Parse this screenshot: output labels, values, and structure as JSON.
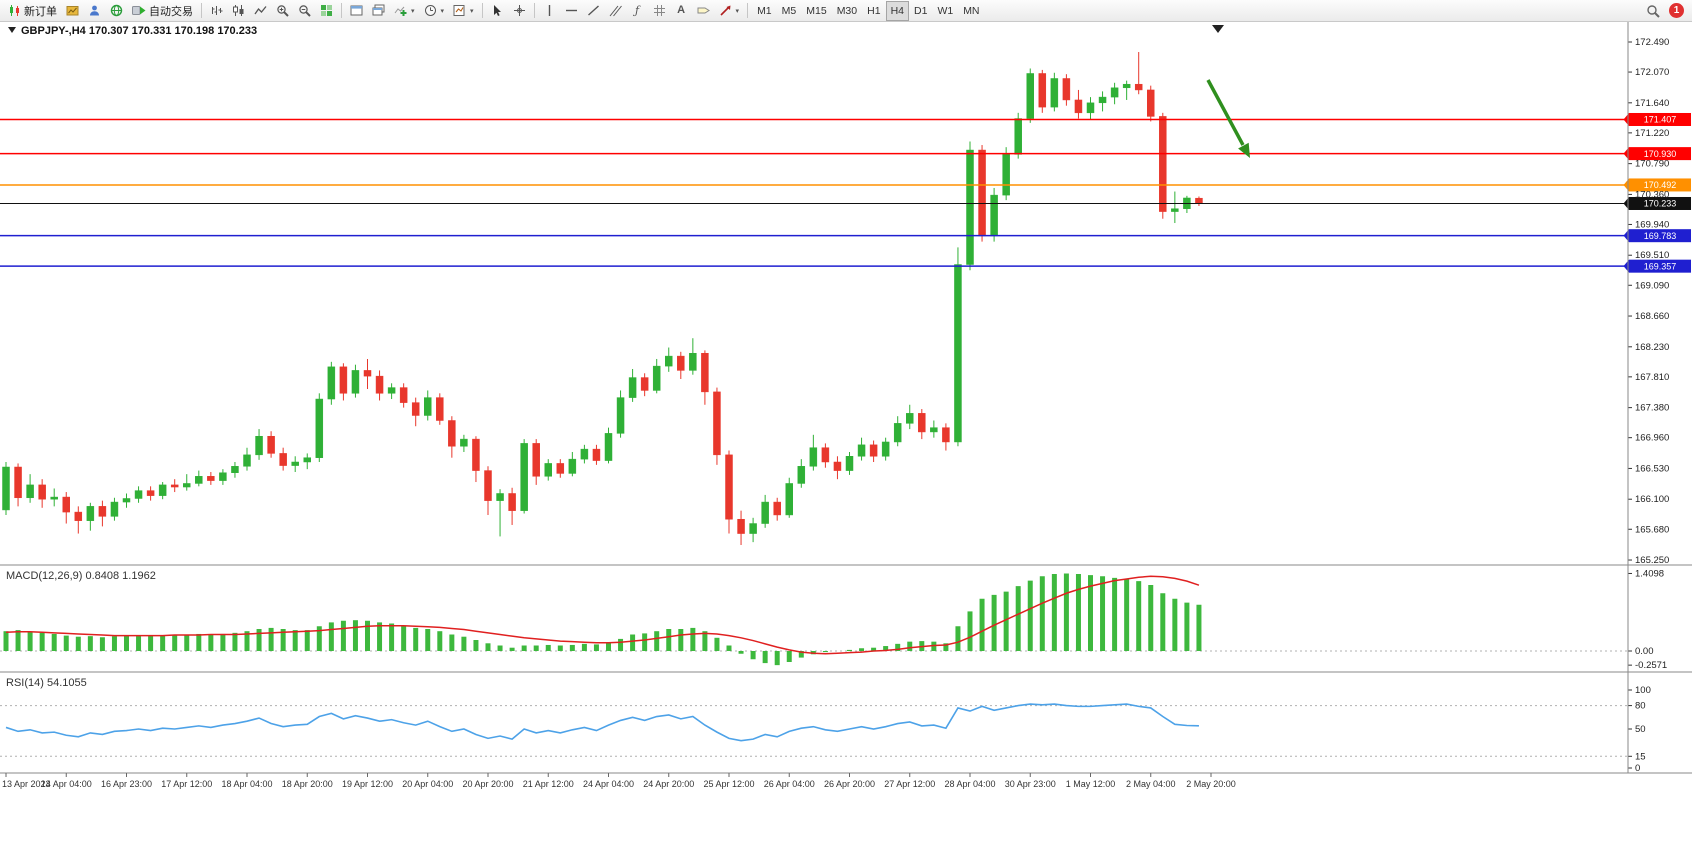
{
  "toolbar": {
    "new_order": "新订单",
    "autotrading": "自动交易",
    "timeframes": [
      "M1",
      "M5",
      "M15",
      "M30",
      "H1",
      "H4",
      "D1",
      "W1",
      "MN"
    ],
    "active_timeframe": "H4",
    "notification_count": "1"
  },
  "icons": {
    "new-order": "mini-candlesticks",
    "new-chart": "gold-chart",
    "profiles": "blue-person",
    "market-watch": "green-globe",
    "auto-trading": "green-play",
    "chart-bars": "ohlc-bars",
    "chart-candles": "candlesticks",
    "chart-line": "zigzag-line",
    "zoom-in": "magnifier-plus",
    "zoom-out": "magnifier-minus",
    "tile-windows": "green-grid",
    "new-window": "window",
    "cascade-windows": "stacked-windows",
    "indicators": "green-plus-chart",
    "periods": "clock",
    "templates": "chart-arrow",
    "cursor": "pointer-arrow",
    "crosshair": "cross",
    "vertical-line": "|",
    "horizontal-line": "—",
    "trendline": "/",
    "channel": "parallel-lines",
    "fibonacci": "ƒ",
    "grid": "#",
    "text": "A",
    "label": "tag",
    "arrows": "arrow-ne",
    "search": "magnifier",
    "notification": "red-badge"
  },
  "chart": {
    "symbol": "GBPJPY-",
    "timeframe": "H4",
    "open": "170.307",
    "high": "170.331",
    "low": "170.198",
    "close": "170.233"
  },
  "chart_data": {
    "type": "candlestick",
    "symbol": "GBPJPY-",
    "timeframe": "H4",
    "ylim": [
      165.25,
      172.49
    ],
    "grid": false,
    "price_axis": [
      "172.490",
      "172.070",
      "171.640",
      "171.220",
      "170.790",
      "170.360",
      "169.940",
      "169.510",
      "169.090",
      "168.660",
      "168.230",
      "167.810",
      "167.380",
      "166.960",
      "166.530",
      "166.100",
      "165.680",
      "165.250"
    ],
    "dates": [
      "13 Apr 2023",
      "14 Apr 04:00",
      "16 Apr 23:00",
      "17 Apr 12:00",
      "18 Apr 04:00",
      "18 Apr 20:00",
      "19 Apr 12:00",
      "20 Apr 04:00",
      "20 Apr 20:00",
      "21 Apr 12:00",
      "24 Apr 04:00",
      "24 Apr 20:00",
      "25 Apr 12:00",
      "26 Apr 04:00",
      "26 Apr 20:00",
      "27 Apr 12:00",
      "28 Apr 04:00",
      "30 Apr 23:00",
      "1 May 12:00",
      "2 May 04:00",
      "2 May 20:00"
    ],
    "colors": {
      "bull": "#2fb036",
      "bear": "#e8372c",
      "macd_hist": "#3db83d",
      "macd_signal": "#e02020",
      "rsi": "#4da2e8",
      "hline_red": "#ff0000",
      "hline_orange": "#ff9000",
      "hline_blue": "#1f1fd0",
      "current_price": "#111111",
      "arrow": "#2f8f1e"
    },
    "hlines": [
      {
        "value": 171.407,
        "label": "171.407",
        "color": "#ff0000"
      },
      {
        "value": 170.93,
        "label": "170.930",
        "color": "#ff0000"
      },
      {
        "value": 170.492,
        "label": "170.492",
        "color": "#ff9000"
      },
      {
        "value": 169.783,
        "label": "169.783",
        "color": "#1f1fd0"
      },
      {
        "value": 169.357,
        "label": "169.357",
        "color": "#1f1fd0"
      }
    ],
    "current_price": {
      "value": 170.233,
      "label": "170.233",
      "color": "#111111"
    },
    "candles": [
      [
        165.95,
        166.62,
        165.88,
        166.55
      ],
      [
        166.55,
        166.6,
        166.0,
        166.12
      ],
      [
        166.12,
        166.45,
        166.05,
        166.3
      ],
      [
        166.3,
        166.38,
        165.98,
        166.1
      ],
      [
        166.1,
        166.25,
        166.0,
        166.13
      ],
      [
        166.13,
        166.2,
        165.76,
        165.92
      ],
      [
        165.92,
        166.0,
        165.62,
        165.8
      ],
      [
        165.8,
        166.05,
        165.66,
        166.0
      ],
      [
        166.0,
        166.08,
        165.72,
        165.86
      ],
      [
        165.86,
        166.12,
        165.8,
        166.06
      ],
      [
        166.06,
        166.18,
        165.98,
        166.11
      ],
      [
        166.11,
        166.28,
        166.05,
        166.22
      ],
      [
        166.22,
        166.28,
        166.08,
        166.15
      ],
      [
        166.15,
        166.34,
        166.1,
        166.3
      ],
      [
        166.3,
        166.38,
        166.2,
        166.27
      ],
      [
        166.27,
        166.45,
        166.22,
        166.32
      ],
      [
        166.32,
        166.5,
        166.28,
        166.42
      ],
      [
        166.42,
        166.48,
        166.3,
        166.36
      ],
      [
        166.36,
        166.52,
        166.3,
        166.47
      ],
      [
        166.47,
        166.62,
        166.4,
        166.56
      ],
      [
        166.56,
        166.82,
        166.5,
        166.72
      ],
      [
        166.72,
        167.08,
        166.65,
        166.98
      ],
      [
        166.98,
        167.05,
        166.68,
        166.74
      ],
      [
        166.74,
        166.82,
        166.5,
        166.57
      ],
      [
        166.57,
        166.7,
        166.48,
        166.62
      ],
      [
        166.62,
        166.74,
        166.52,
        166.68
      ],
      [
        166.68,
        167.58,
        166.62,
        167.5
      ],
      [
        167.5,
        168.02,
        167.42,
        167.95
      ],
      [
        167.95,
        168.0,
        167.48,
        167.58
      ],
      [
        167.58,
        167.98,
        167.52,
        167.9
      ],
      [
        167.9,
        168.06,
        167.64,
        167.82
      ],
      [
        167.82,
        167.9,
        167.48,
        167.58
      ],
      [
        167.58,
        167.72,
        167.5,
        167.66
      ],
      [
        167.66,
        167.72,
        167.38,
        167.45
      ],
      [
        167.45,
        167.52,
        167.12,
        167.27
      ],
      [
        167.27,
        167.62,
        167.2,
        167.52
      ],
      [
        167.52,
        167.58,
        167.14,
        167.2
      ],
      [
        167.2,
        167.26,
        166.68,
        166.84
      ],
      [
        166.84,
        167.0,
        166.76,
        166.94
      ],
      [
        166.94,
        166.98,
        166.34,
        166.5
      ],
      [
        166.5,
        166.56,
        165.88,
        166.08
      ],
      [
        166.08,
        166.24,
        165.58,
        166.18
      ],
      [
        166.18,
        166.26,
        165.74,
        165.94
      ],
      [
        165.94,
        166.94,
        165.9,
        166.88
      ],
      [
        166.88,
        166.94,
        166.3,
        166.42
      ],
      [
        166.42,
        166.66,
        166.36,
        166.6
      ],
      [
        166.6,
        166.66,
        166.4,
        166.46
      ],
      [
        166.46,
        166.76,
        166.42,
        166.66
      ],
      [
        166.66,
        166.86,
        166.6,
        166.8
      ],
      [
        166.8,
        166.86,
        166.58,
        166.64
      ],
      [
        166.64,
        167.1,
        166.6,
        167.02
      ],
      [
        167.02,
        167.62,
        166.96,
        167.52
      ],
      [
        167.52,
        167.92,
        167.46,
        167.8
      ],
      [
        167.8,
        167.86,
        167.54,
        167.62
      ],
      [
        167.62,
        168.06,
        167.58,
        167.96
      ],
      [
        167.96,
        168.22,
        167.88,
        168.1
      ],
      [
        168.1,
        168.16,
        167.78,
        167.9
      ],
      [
        167.9,
        168.35,
        167.84,
        168.14
      ],
      [
        168.14,
        168.18,
        167.42,
        167.6
      ],
      [
        167.6,
        167.66,
        166.58,
        166.72
      ],
      [
        166.72,
        166.78,
        165.62,
        165.82
      ],
      [
        165.82,
        165.94,
        165.46,
        165.62
      ],
      [
        165.62,
        165.84,
        165.5,
        165.76
      ],
      [
        165.76,
        166.16,
        165.7,
        166.06
      ],
      [
        166.06,
        166.12,
        165.8,
        165.88
      ],
      [
        165.88,
        166.4,
        165.84,
        166.32
      ],
      [
        166.32,
        166.66,
        166.26,
        166.56
      ],
      [
        166.56,
        167.0,
        166.5,
        166.82
      ],
      [
        166.82,
        166.88,
        166.54,
        166.62
      ],
      [
        166.62,
        166.7,
        166.38,
        166.5
      ],
      [
        166.5,
        166.76,
        166.44,
        166.7
      ],
      [
        166.7,
        166.96,
        166.64,
        166.86
      ],
      [
        166.86,
        166.92,
        166.62,
        166.7
      ],
      [
        166.7,
        166.96,
        166.64,
        166.9
      ],
      [
        166.9,
        167.26,
        166.84,
        167.16
      ],
      [
        167.16,
        167.42,
        167.08,
        167.3
      ],
      [
        167.3,
        167.36,
        166.94,
        167.04
      ],
      [
        167.04,
        167.2,
        166.96,
        167.1
      ],
      [
        167.1,
        167.16,
        166.78,
        166.9
      ],
      [
        166.9,
        169.62,
        166.84,
        169.38
      ],
      [
        169.38,
        171.1,
        169.3,
        170.98
      ],
      [
        170.98,
        171.05,
        169.7,
        169.78
      ],
      [
        169.78,
        170.45,
        169.7,
        170.35
      ],
      [
        170.35,
        171.02,
        170.28,
        170.92
      ],
      [
        170.92,
        171.5,
        170.86,
        171.42
      ],
      [
        171.42,
        172.12,
        171.36,
        172.05
      ],
      [
        172.05,
        172.1,
        171.5,
        171.58
      ],
      [
        171.58,
        172.06,
        171.52,
        171.98
      ],
      [
        171.98,
        172.04,
        171.6,
        171.68
      ],
      [
        171.68,
        171.82,
        171.42,
        171.5
      ],
      [
        171.5,
        171.72,
        171.4,
        171.64
      ],
      [
        171.64,
        171.8,
        171.52,
        171.72
      ],
      [
        171.72,
        171.92,
        171.62,
        171.85
      ],
      [
        171.85,
        171.95,
        171.68,
        171.9
      ],
      [
        171.9,
        172.35,
        171.76,
        171.82
      ],
      [
        171.82,
        171.88,
        171.38,
        171.45
      ],
      [
        171.45,
        171.5,
        170.02,
        170.12
      ],
      [
        170.12,
        170.4,
        169.96,
        170.16
      ],
      [
        170.16,
        170.34,
        170.1,
        170.31
      ],
      [
        170.307,
        170.331,
        170.198,
        170.233
      ]
    ],
    "indicators": {
      "macd": {
        "label": "MACD(12,26,9) 0.8408 1.1962",
        "params": "12,26,9",
        "value": "0.8408",
        "signal_value": "1.1962",
        "axis": [
          "1.4098",
          "0.00",
          "-0.2571"
        ],
        "axis_values": [
          1.4098,
          0.0,
          -0.2571
        ],
        "hist": [
          0.36,
          0.38,
          0.35,
          0.33,
          0.31,
          0.28,
          0.26,
          0.27,
          0.25,
          0.27,
          0.28,
          0.29,
          0.28,
          0.29,
          0.3,
          0.3,
          0.31,
          0.3,
          0.31,
          0.33,
          0.36,
          0.4,
          0.42,
          0.4,
          0.38,
          0.38,
          0.45,
          0.52,
          0.55,
          0.56,
          0.55,
          0.52,
          0.5,
          0.46,
          0.42,
          0.4,
          0.36,
          0.3,
          0.26,
          0.2,
          0.14,
          0.1,
          0.06,
          0.1,
          0.1,
          0.11,
          0.1,
          0.11,
          0.13,
          0.12,
          0.15,
          0.22,
          0.3,
          0.32,
          0.36,
          0.4,
          0.4,
          0.42,
          0.36,
          0.24,
          0.1,
          -0.05,
          -0.15,
          -0.22,
          -0.2571,
          -0.2,
          -0.12,
          -0.06,
          -0.02,
          0.0,
          0.02,
          0.05,
          0.06,
          0.09,
          0.13,
          0.17,
          0.18,
          0.17,
          0.14,
          0.45,
          0.72,
          0.95,
          1.02,
          1.08,
          1.18,
          1.28,
          1.36,
          1.4,
          1.4098,
          1.4,
          1.38,
          1.36,
          1.33,
          1.3,
          1.27,
          1.2,
          1.05,
          0.95,
          0.88,
          0.8408
        ],
        "signal": [
          0.34,
          0.35,
          0.35,
          0.34,
          0.33,
          0.32,
          0.31,
          0.3,
          0.29,
          0.28,
          0.28,
          0.28,
          0.28,
          0.28,
          0.29,
          0.29,
          0.29,
          0.3,
          0.3,
          0.3,
          0.31,
          0.32,
          0.33,
          0.34,
          0.35,
          0.36,
          0.37,
          0.39,
          0.41,
          0.43,
          0.45,
          0.46,
          0.46,
          0.46,
          0.45,
          0.44,
          0.43,
          0.41,
          0.39,
          0.36,
          0.33,
          0.3,
          0.27,
          0.24,
          0.22,
          0.2,
          0.18,
          0.17,
          0.16,
          0.15,
          0.15,
          0.16,
          0.18,
          0.2,
          0.23,
          0.26,
          0.29,
          0.31,
          0.32,
          0.31,
          0.28,
          0.24,
          0.19,
          0.13,
          0.07,
          0.02,
          -0.02,
          -0.04,
          -0.05,
          -0.04,
          -0.03,
          -0.02,
          0.0,
          0.01,
          0.03,
          0.06,
          0.08,
          0.1,
          0.11,
          0.16,
          0.25,
          0.36,
          0.47,
          0.57,
          0.67,
          0.77,
          0.87,
          0.96,
          1.05,
          1.12,
          1.18,
          1.23,
          1.28,
          1.31,
          1.34,
          1.36,
          1.35,
          1.32,
          1.27,
          1.1962
        ]
      },
      "rsi": {
        "label": "RSI(14) 54.1055",
        "params": "14",
        "value": "54.1055",
        "axis": [
          "100",
          "80",
          "50",
          "15",
          "0"
        ],
        "axis_values": [
          100,
          80,
          50,
          15,
          0
        ],
        "levels": [
          80,
          15
        ],
        "values": [
          52,
          47,
          49,
          45,
          46,
          42,
          40,
          45,
          43,
          47,
          48,
          50,
          48,
          51,
          50,
          52,
          54,
          52,
          55,
          57,
          60,
          64,
          57,
          53,
          55,
          56,
          66,
          70,
          63,
          67,
          64,
          60,
          62,
          58,
          55,
          60,
          53,
          47,
          50,
          43,
          38,
          41,
          37,
          50,
          45,
          48,
          45,
          49,
          52,
          48,
          55,
          61,
          65,
          61,
          66,
          68,
          63,
          66,
          55,
          46,
          38,
          35,
          37,
          43,
          40,
          47,
          51,
          53,
          49,
          47,
          50,
          53,
          50,
          53,
          57,
          59,
          54,
          55,
          51,
          77,
          73,
          79,
          74,
          77,
          80,
          82,
          81,
          82,
          80,
          79,
          79,
          80,
          81,
          82,
          79,
          77,
          66,
          56,
          54.5,
          54.1
        ]
      }
    },
    "annotations": {
      "arrow": {
        "from": [
          1208,
          80
        ],
        "to": [
          1250,
          158
        ],
        "color": "#2f8f1e"
      },
      "shift_marker_x": 1218
    }
  }
}
